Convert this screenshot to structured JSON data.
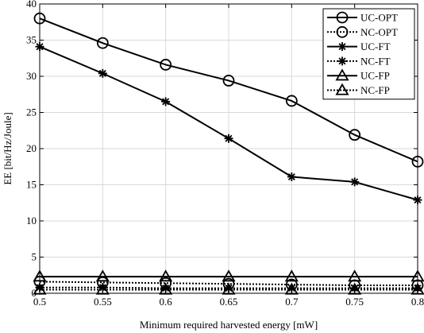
{
  "chart_data": {
    "type": "line",
    "title": "",
    "xlabel": "Minimum required harvested energy [mW]",
    "ylabel": "EE [bit/Hz/Joule]",
    "x": [
      0.5,
      0.55,
      0.6,
      0.65,
      0.7,
      0.75,
      0.8
    ],
    "x_ticks": [
      "0.5",
      "0.55",
      "0.6",
      "0.65",
      "0.7",
      "0.75",
      "0.8"
    ],
    "y_ticks": [
      "0",
      "5",
      "10",
      "15",
      "20",
      "25",
      "30",
      "35",
      "40"
    ],
    "xlim": [
      0.5,
      0.8
    ],
    "ylim": [
      0,
      40
    ],
    "grid": true,
    "legend_position": "top-right",
    "series": [
      {
        "name": "UC-OPT",
        "marker": "circle",
        "line": "solid",
        "values": [
          38.0,
          34.6,
          31.6,
          29.4,
          26.6,
          21.9,
          18.2
        ]
      },
      {
        "name": "NC-OPT",
        "marker": "circle",
        "line": "dotted",
        "values": [
          1.6,
          1.5,
          1.4,
          1.3,
          1.2,
          1.1,
          1.1
        ]
      },
      {
        "name": "UC-FT",
        "marker": "star",
        "line": "solid",
        "values": [
          34.1,
          30.4,
          26.5,
          21.4,
          16.1,
          15.4,
          12.9
        ]
      },
      {
        "name": "NC-FT",
        "marker": "star",
        "line": "dotted",
        "values": [
          0.8,
          0.8,
          0.7,
          0.7,
          0.7,
          0.7,
          0.7
        ]
      },
      {
        "name": "UC-FP",
        "marker": "triangle",
        "line": "solid",
        "values": [
          2.3,
          2.3,
          2.3,
          2.3,
          2.3,
          2.3,
          2.3
        ]
      },
      {
        "name": "NC-FP",
        "marker": "triangle",
        "line": "dotted",
        "values": [
          0.5,
          0.5,
          0.5,
          0.5,
          0.5,
          0.5,
          0.5
        ]
      }
    ]
  }
}
